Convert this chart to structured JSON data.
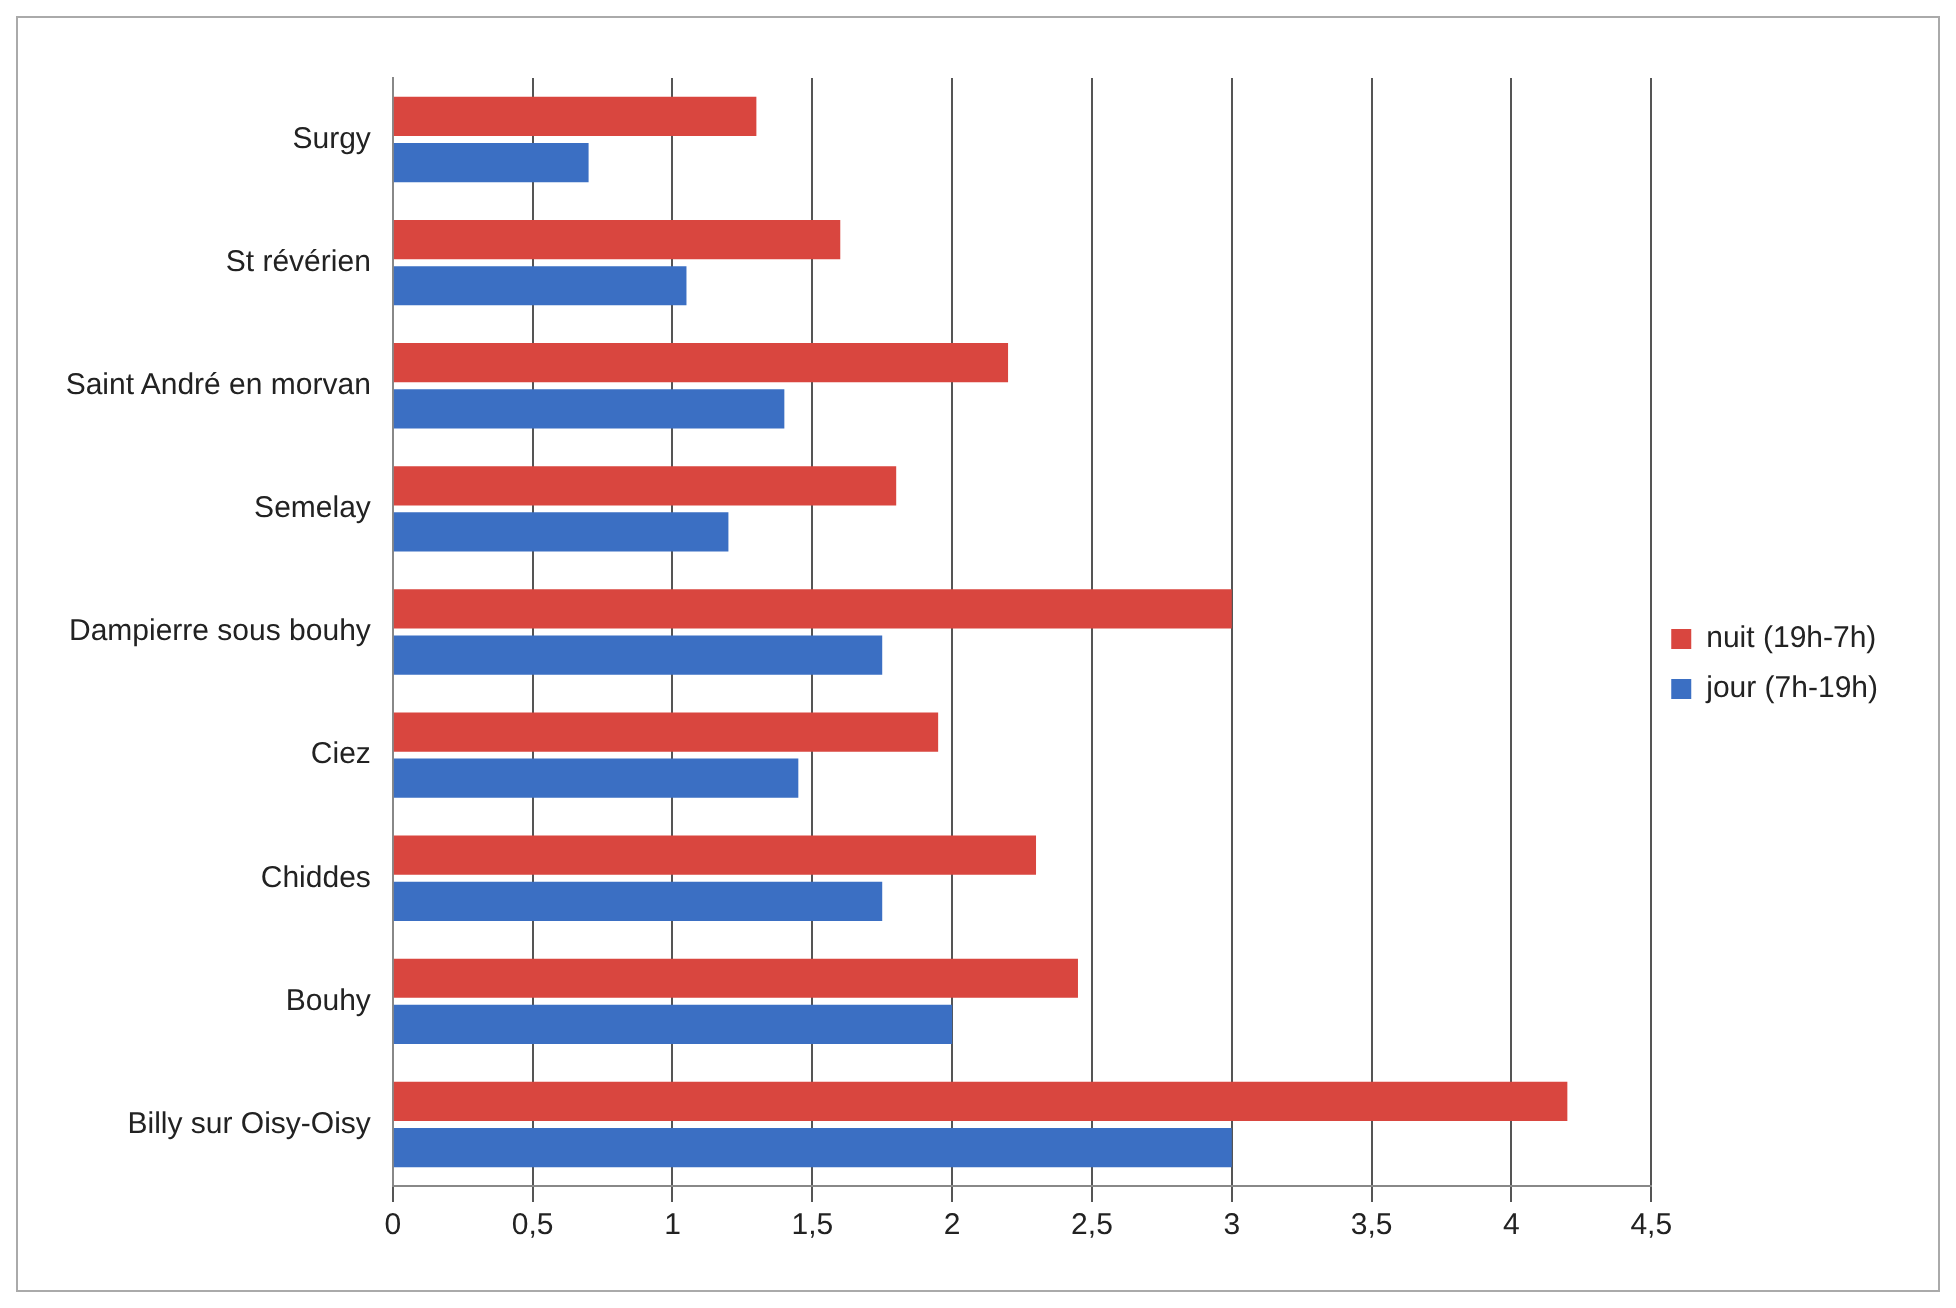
{
  "chart_data": {
    "type": "bar",
    "orientation": "horizontal",
    "categories": [
      "Surgy",
      "St révérien",
      "Saint André en morvan",
      "Semelay",
      "Dampierre sous bouhy",
      "Ciez",
      "Chiddes",
      "Bouhy",
      "Billy sur Oisy-Oisy"
    ],
    "series": [
      {
        "name": "nuit (19h-7h)",
        "color": "#d9463f",
        "values": [
          1.3,
          1.6,
          2.2,
          1.8,
          3.0,
          1.95,
          2.3,
          2.45,
          4.2
        ]
      },
      {
        "name": "jour (7h-19h)",
        "color": "#3b6fc3",
        "values": [
          0.7,
          1.05,
          1.4,
          1.2,
          1.75,
          1.45,
          1.75,
          2.0,
          3.0
        ]
      }
    ],
    "xlim": [
      0,
      4.5
    ],
    "xticks": [
      0,
      {
        "value": 0.5,
        "label": "0,5"
      },
      1,
      {
        "value": 1.5,
        "label": "1,5"
      },
      2,
      {
        "value": 2.5,
        "label": "2,5"
      },
      3,
      {
        "value": 3.5,
        "label": "3,5"
      },
      4,
      {
        "value": 4.5,
        "label": "4,5"
      }
    ],
    "grid": "x",
    "legend": "right"
  }
}
